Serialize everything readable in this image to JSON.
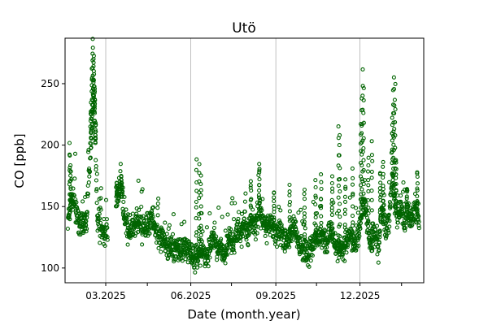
{
  "chart_data": {
    "type": "scatter",
    "title": "Utö",
    "xlabel": "Date (month.year)",
    "ylabel": "CO [ppb]",
    "x_scale": "date",
    "xlim": [
      "2025-01-16",
      "2026-02-08"
    ],
    "ylim": [
      88,
      287
    ],
    "x_ticks": [
      {
        "date": "2025-03-01",
        "label": "03.2025",
        "grid": true
      },
      {
        "date": "2025-04-15",
        "label": "",
        "grid": false
      },
      {
        "date": "2025-06-01",
        "label": "06.2025",
        "grid": true
      },
      {
        "date": "2025-07-15",
        "label": "",
        "grid": false
      },
      {
        "date": "2025-09-01",
        "label": "09.2025",
        "grid": true
      },
      {
        "date": "2025-10-15",
        "label": "",
        "grid": false
      },
      {
        "date": "2025-12-01",
        "label": "12.2025",
        "grid": true
      },
      {
        "date": "2026-01-15",
        "label": "",
        "grid": false
      }
    ],
    "y_ticks": [
      100,
      150,
      200,
      250
    ],
    "grid": "x-major",
    "marker": "open-circle",
    "series": [
      {
        "color": "#006400",
        "anchors": [
          [
            "2025-01-19",
            137
          ],
          [
            "2025-01-21",
            145
          ],
          [
            "2025-01-23",
            160
          ],
          [
            "2025-01-25",
            150
          ],
          [
            "2025-01-27",
            155
          ],
          [
            "2025-01-29",
            140
          ],
          [
            "2025-01-31",
            132
          ],
          [
            "2025-02-02",
            137
          ],
          [
            "2025-02-04",
            142
          ],
          [
            "2025-02-06",
            134
          ],
          [
            "2025-02-08",
            138
          ],
          [
            "2025-02-11",
            175
          ],
          [
            "2025-02-14",
            215
          ],
          [
            "2025-02-16",
            245
          ],
          [
            "2025-02-18",
            200
          ],
          [
            "2025-02-20",
            140
          ],
          [
            "2025-02-23",
            135
          ],
          [
            "2025-02-26",
            130
          ],
          [
            "2025-02-28",
            128
          ],
          [
            "2025-03-02",
            130
          ],
          [
            "2025-03-15",
            162
          ],
          [
            "2025-03-18",
            165
          ],
          [
            "2025-03-21",
            140
          ],
          [
            "2025-03-25",
            130
          ],
          [
            "2025-04-01",
            132
          ],
          [
            "2025-04-06",
            138
          ],
          [
            "2025-04-10",
            130
          ],
          [
            "2025-04-15",
            135
          ],
          [
            "2025-04-19",
            143
          ],
          [
            "2025-04-24",
            132
          ],
          [
            "2025-04-28",
            125
          ],
          [
            "2025-05-03",
            120
          ],
          [
            "2025-05-08",
            118
          ],
          [
            "2025-05-13",
            115
          ],
          [
            "2025-05-18",
            117
          ],
          [
            "2025-05-23",
            113
          ],
          [
            "2025-05-28",
            118
          ],
          [
            "2025-06-02",
            112
          ],
          [
            "2025-06-07",
            108
          ],
          [
            "2025-06-11",
            112
          ],
          [
            "2025-06-14",
            115
          ],
          [
            "2025-06-17",
            108
          ],
          [
            "2025-06-20",
            112
          ],
          [
            "2025-06-24",
            125
          ],
          [
            "2025-06-29",
            118
          ],
          [
            "2025-07-03",
            116
          ],
          [
            "2025-07-08",
            112
          ],
          [
            "2025-07-13",
            125
          ],
          [
            "2025-07-17",
            118
          ],
          [
            "2025-07-21",
            132
          ],
          [
            "2025-07-25",
            124
          ],
          [
            "2025-07-29",
            138
          ],
          [
            "2025-08-02",
            127
          ],
          [
            "2025-08-06",
            142
          ],
          [
            "2025-08-10",
            132
          ],
          [
            "2025-08-14",
            150
          ],
          [
            "2025-08-18",
            138
          ],
          [
            "2025-08-22",
            132
          ],
          [
            "2025-08-27",
            135
          ],
          [
            "2025-09-01",
            128
          ],
          [
            "2025-09-06",
            132
          ],
          [
            "2025-09-11",
            120
          ],
          [
            "2025-09-16",
            125
          ],
          [
            "2025-09-21",
            135
          ],
          [
            "2025-09-26",
            120
          ],
          [
            "2025-10-01",
            115
          ],
          [
            "2025-10-06",
            112
          ],
          [
            "2025-10-11",
            118
          ],
          [
            "2025-10-16",
            125
          ],
          [
            "2025-10-21",
            128
          ],
          [
            "2025-10-26",
            120
          ],
          [
            "2025-10-31",
            130
          ],
          [
            "2025-11-05",
            118
          ],
          [
            "2025-11-10",
            115
          ],
          [
            "2025-11-15",
            120
          ],
          [
            "2025-11-20",
            125
          ],
          [
            "2025-11-25",
            118
          ],
          [
            "2025-11-30",
            130
          ],
          [
            "2025-12-03",
            145
          ],
          [
            "2025-12-06",
            155
          ],
          [
            "2025-12-09",
            138
          ],
          [
            "2025-12-13",
            120
          ],
          [
            "2025-12-17",
            130
          ],
          [
            "2025-12-21",
            115
          ],
          [
            "2025-12-24",
            150
          ],
          [
            "2025-12-27",
            140
          ],
          [
            "2025-12-30",
            130
          ],
          [
            "2026-01-02",
            145
          ],
          [
            "2026-01-05",
            175
          ],
          [
            "2026-01-08",
            150
          ],
          [
            "2026-01-11",
            140
          ],
          [
            "2026-01-14",
            150
          ],
          [
            "2026-01-18",
            138
          ],
          [
            "2026-01-22",
            145
          ],
          [
            "2026-01-26",
            140
          ],
          [
            "2026-01-30",
            148
          ],
          [
            "2026-02-03",
            142
          ]
        ],
        "spikes": [
          [
            "2025-01-21",
            199
          ],
          [
            "2025-01-22",
            183
          ],
          [
            "2025-02-13",
            233
          ],
          [
            "2025-02-14",
            262
          ],
          [
            "2025-02-15",
            284
          ],
          [
            "2025-02-16",
            271
          ],
          [
            "2025-02-17",
            247
          ],
          [
            "2025-02-18",
            219
          ],
          [
            "2025-03-13",
            169
          ],
          [
            "2025-03-18",
            174
          ],
          [
            "2025-06-07",
            188
          ],
          [
            "2025-06-10",
            184
          ],
          [
            "2025-06-12",
            176
          ],
          [
            "2025-08-05",
            172
          ],
          [
            "2025-08-14",
            184
          ],
          [
            "2025-08-30",
            163
          ],
          [
            "2025-09-16",
            166
          ],
          [
            "2025-10-02",
            165
          ],
          [
            "2025-10-14",
            170
          ],
          [
            "2025-10-20",
            174
          ],
          [
            "2025-11-01",
            174
          ],
          [
            "2025-11-08",
            215
          ],
          [
            "2025-11-09",
            209
          ],
          [
            "2025-11-15",
            174
          ],
          [
            "2025-11-23",
            180
          ],
          [
            "2025-12-02",
            216
          ],
          [
            "2025-12-03",
            238
          ],
          [
            "2025-12-04",
            260
          ],
          [
            "2025-12-05",
            247
          ],
          [
            "2025-12-10",
            190
          ],
          [
            "2025-12-14",
            202
          ],
          [
            "2025-12-23",
            178
          ],
          [
            "2025-12-26",
            186
          ],
          [
            "2026-01-05",
            222
          ],
          [
            "2026-01-06",
            243
          ],
          [
            "2026-01-07",
            255
          ],
          [
            "2026-01-08",
            249
          ],
          [
            "2026-01-09",
            190
          ],
          [
            "2026-01-21",
            165
          ],
          [
            "2026-02-01",
            178
          ]
        ]
      }
    ]
  }
}
